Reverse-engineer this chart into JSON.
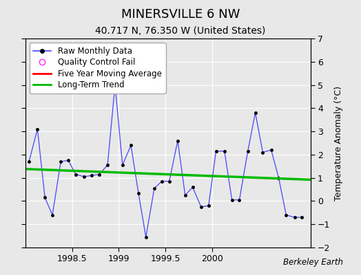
{
  "title": "MINERSVILLE 6 NW",
  "subtitle": "40.717 N, 76.350 W (United States)",
  "ylabel": "Temperature Anomaly (°C)",
  "watermark": "Berkeley Earth",
  "ylim": [
    -2,
    7
  ],
  "yticks": [
    -2,
    -1,
    0,
    1,
    2,
    3,
    4,
    5,
    6,
    7
  ],
  "xlim": [
    1998.0,
    2001.05
  ],
  "xticks": [
    1998.5,
    1999.0,
    1999.5,
    2000.0
  ],
  "bg_color": "#e8e8e8",
  "plot_bg": "#e8e8e8",
  "raw_x": [
    1998.04,
    1998.13,
    1998.21,
    1998.29,
    1998.38,
    1998.46,
    1998.54,
    1998.63,
    1998.71,
    1998.79,
    1998.88,
    1998.96,
    1999.04,
    1999.13,
    1999.21,
    1999.29,
    1999.38,
    1999.46,
    1999.54,
    1999.63,
    1999.71,
    1999.79,
    1999.88,
    1999.96,
    2000.04,
    2000.13,
    2000.21,
    2000.29,
    2000.38,
    2000.46,
    2000.54,
    2000.63,
    2000.71,
    2000.79,
    2000.88,
    2000.96
  ],
  "raw_y": [
    1.7,
    3.1,
    0.15,
    -0.6,
    1.7,
    1.75,
    1.15,
    1.05,
    1.1,
    1.15,
    1.55,
    5.0,
    1.55,
    2.4,
    0.35,
    -1.55,
    0.55,
    0.85,
    0.85,
    2.6,
    0.25,
    0.6,
    -0.25,
    -0.2,
    2.15,
    2.15,
    0.05,
    0.05,
    2.15,
    3.8,
    2.1,
    2.2,
    1.0,
    -0.6,
    -0.7,
    -0.7
  ],
  "trend_x": [
    1998.0,
    2001.05
  ],
  "trend_y": [
    1.38,
    0.92
  ],
  "raw_color": "#4444ff",
  "trend_color": "#00bb00",
  "mavg_color": "#ff0000",
  "qc_color": "#ff44ff",
  "grid_color": "#ffffff",
  "title_fontsize": 13,
  "subtitle_fontsize": 10,
  "label_fontsize": 9,
  "tick_fontsize": 9,
  "legend_fontsize": 8.5
}
